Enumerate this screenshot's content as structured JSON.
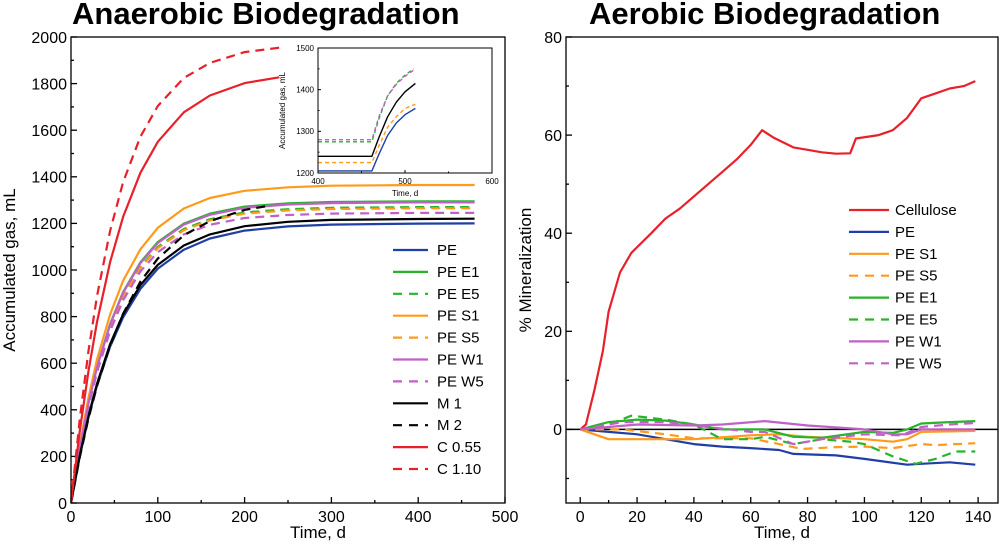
{
  "chart_data": [
    {
      "type": "line",
      "title": "Anaerobic Biodegradation",
      "xlabel": "Time, d",
      "ylabel": "Accumulated gas, mL",
      "xlim": [
        0,
        500
      ],
      "ylim": [
        0,
        2000
      ],
      "xticks": [
        0,
        100,
        200,
        300,
        400,
        500
      ],
      "yticks": [
        0,
        200,
        400,
        600,
        800,
        1000,
        1200,
        1400,
        1600,
        1800,
        2000
      ],
      "grid": false,
      "legend": "right-center",
      "series": [
        {
          "name": "PE",
          "color": "#1f3fa6",
          "dash": false,
          "x": [
            0,
            10,
            20,
            30,
            45,
            60,
            80,
            100,
            130,
            160,
            200,
            250,
            300,
            400,
            465
          ],
          "y": [
            0,
            199,
            366,
            504,
            671,
            797,
            919,
            1006,
            1087,
            1135,
            1169,
            1187,
            1195,
            1199,
            1200
          ]
        },
        {
          "name": "PE E1",
          "color": "#27b42a",
          "dash": false,
          "x": [
            0,
            10,
            20,
            30,
            45,
            60,
            80,
            100,
            130,
            160,
            200,
            250,
            300,
            400,
            465
          ],
          "y": [
            0,
            234,
            427,
            584,
            768,
            905,
            1033,
            1120,
            1199,
            1242,
            1272,
            1286,
            1292,
            1295,
            1295
          ]
        },
        {
          "name": "PE E5",
          "color": "#27b42a",
          "dash": true,
          "x": [
            0,
            10,
            20,
            30,
            45,
            60,
            80,
            100,
            130,
            160,
            200,
            250,
            300,
            400,
            465
          ],
          "y": [
            0,
            230,
            419,
            573,
            753,
            888,
            1013,
            1099,
            1176,
            1218,
            1247,
            1261,
            1267,
            1270,
            1270
          ]
        },
        {
          "name": "PE S1",
          "color": "#ff9a1a",
          "dash": false,
          "x": [
            0,
            10,
            20,
            30,
            45,
            60,
            80,
            100,
            130,
            160,
            200,
            250,
            300,
            400,
            465
          ],
          "y": [
            0,
            247,
            450,
            616,
            809,
            954,
            1089,
            1181,
            1264,
            1309,
            1340,
            1355,
            1362,
            1365,
            1365
          ]
        },
        {
          "name": "PE S5",
          "color": "#ff9a1a",
          "dash": true,
          "x": [
            0,
            10,
            20,
            30,
            45,
            60,
            80,
            100,
            130,
            160,
            200,
            250,
            300,
            400,
            465
          ],
          "y": [
            0,
            229,
            417,
            570,
            750,
            884,
            1009,
            1094,
            1171,
            1213,
            1242,
            1256,
            1262,
            1265,
            1265
          ]
        },
        {
          "name": "PE W1",
          "color": "#c061c8",
          "dash": false,
          "x": [
            0,
            10,
            20,
            30,
            45,
            60,
            80,
            100,
            130,
            160,
            200,
            250,
            300,
            400,
            465
          ],
          "y": [
            0,
            233,
            426,
            582,
            765,
            902,
            1029,
            1116,
            1195,
            1237,
            1267,
            1281,
            1287,
            1290,
            1290
          ]
        },
        {
          "name": "PE W5",
          "color": "#c061c8",
          "dash": true,
          "x": [
            0,
            10,
            20,
            30,
            45,
            60,
            80,
            100,
            130,
            160,
            200,
            250,
            300,
            400,
            465
          ],
          "y": [
            0,
            225,
            411,
            561,
            738,
            870,
            994,
            1077,
            1153,
            1194,
            1223,
            1236,
            1242,
            1245,
            1245
          ]
        },
        {
          "name": "M 1",
          "color": "#000000",
          "dash": false,
          "x": [
            0,
            10,
            20,
            30,
            45,
            60,
            80,
            100,
            130,
            160,
            200,
            250,
            300,
            400,
            465
          ],
          "y": [
            0,
            203,
            372,
            512,
            682,
            810,
            935,
            1022,
            1105,
            1153,
            1188,
            1207,
            1215,
            1219,
            1220
          ]
        },
        {
          "name": "M 2",
          "color": "#000000",
          "dash": true,
          "x": [
            0,
            10,
            20,
            30,
            45,
            60,
            80,
            100,
            130,
            160,
            200,
            230
          ],
          "y": [
            0,
            195,
            362,
            502,
            676,
            812,
            950,
            1049,
            1149,
            1210,
            1258,
            1277
          ]
        },
        {
          "name": "C 0.55",
          "color": "#e8202a",
          "dash": false,
          "x": [
            0,
            10,
            20,
            30,
            45,
            60,
            80,
            100,
            130,
            160,
            200,
            240
          ],
          "y": [
            0,
            307,
            564,
            777,
            1034,
            1228,
            1417,
            1550,
            1677,
            1749,
            1802,
            1827
          ]
        },
        {
          "name": "C 1.10",
          "color": "#e8202a",
          "dash": true,
          "x": [
            0,
            10,
            20,
            30,
            45,
            60,
            80,
            100,
            130,
            160,
            200,
            240
          ],
          "y": [
            0,
            357,
            650,
            888,
            1168,
            1377,
            1572,
            1704,
            1824,
            1889,
            1935,
            1954
          ]
        }
      ],
      "inset": {
        "xlabel": "Time, d",
        "ylabel": "Accumulated gas, mL",
        "xlim": [
          400,
          600
        ],
        "ylim": [
          1200,
          1500
        ],
        "xticks": [
          400,
          500,
          600
        ],
        "yticks": [
          1200,
          1300,
          1400,
          1500
        ],
        "series": [
          {
            "name": "PE",
            "color": "#1f3fa6",
            "dash": false,
            "x": [
              400,
              462,
              470,
              480,
              490,
              500,
              512
            ],
            "y": [
              1205,
              1205,
              1245,
              1290,
              1320,
              1340,
              1355
            ]
          },
          {
            "name": "PE S5",
            "color": "#ff9a1a",
            "dash": true,
            "x": [
              400,
              462,
              470,
              480,
              490,
              500,
              512
            ],
            "y": [
              1225,
              1225,
              1265,
              1310,
              1335,
              1355,
              1365
            ]
          },
          {
            "name": "M 1",
            "color": "#000000",
            "dash": false,
            "x": [
              400,
              462,
              470,
              480,
              490,
              500,
              512
            ],
            "y": [
              1240,
              1240,
              1285,
              1335,
              1370,
              1395,
              1415
            ]
          },
          {
            "name": "PE E5",
            "color": "#27b42a",
            "dash": true,
            "x": [
              400,
              462,
              470,
              480,
              490,
              500,
              510
            ],
            "y": [
              1275,
              1275,
              1330,
              1385,
              1415,
              1435,
              1450
            ]
          },
          {
            "name": "PE W5",
            "color": "#c061c8",
            "dash": true,
            "x": [
              400,
              462,
              470,
              480,
              490,
              500,
              510
            ],
            "y": [
              1280,
              1280,
              1335,
              1385,
              1413,
              1432,
              1447
            ]
          }
        ]
      }
    },
    {
      "type": "line",
      "title": "Aerobic Biodegradation",
      "xlabel": "Time, d",
      "ylabel": "% Mineralization",
      "xlim": [
        -5,
        147
      ],
      "ylim": [
        -15,
        80
      ],
      "xticks": [
        0,
        20,
        40,
        60,
        80,
        100,
        120,
        140
      ],
      "yticks": [
        0,
        20,
        40,
        60,
        80
      ],
      "grid": false,
      "zero_line": true,
      "legend": "right-center",
      "series": [
        {
          "name": "Cellulose",
          "color": "#e8202a",
          "dash": false,
          "x": [
            0,
            2,
            5,
            8,
            10,
            14,
            18,
            25,
            30,
            35,
            40,
            45,
            50,
            55,
            60,
            64,
            68,
            75,
            80,
            85,
            90,
            95,
            97,
            105,
            110,
            115,
            120,
            125,
            130,
            135,
            139
          ],
          "y": [
            0,
            1,
            8,
            16,
            24,
            32,
            36,
            40,
            43,
            45,
            47.5,
            50,
            52.5,
            55,
            58,
            61,
            59.5,
            57.5,
            57,
            56.5,
            56.2,
            56.3,
            59.3,
            60,
            61,
            63.5,
            67.5,
            68.5,
            69.5,
            70,
            71
          ]
        },
        {
          "name": "PE",
          "color": "#1f3fa6",
          "dash": false,
          "x": [
            0,
            10,
            20,
            30,
            40,
            50,
            60,
            70,
            75,
            90,
            100,
            115,
            120,
            130,
            139
          ],
          "y": [
            0,
            -0.5,
            -1,
            -2,
            -3,
            -3.5,
            -3.8,
            -4.2,
            -5,
            -5.3,
            -6,
            -7.2,
            -7,
            -6.7,
            -7.2
          ]
        },
        {
          "name": "PE S1",
          "color": "#ff9a1a",
          "dash": false,
          "x": [
            0,
            5,
            10,
            20,
            40,
            60,
            70,
            80,
            100,
            110,
            115,
            120,
            139
          ],
          "y": [
            0,
            -1,
            -2,
            -2,
            -2,
            -1.2,
            -1,
            -1.5,
            -2,
            -2.5,
            -2,
            -0.5,
            -0.3
          ]
        },
        {
          "name": "PE S5",
          "color": "#ff9a1a",
          "dash": true,
          "x": [
            0,
            15,
            30,
            40,
            60,
            70,
            78,
            90,
            100,
            110,
            120,
            125,
            139
          ],
          "y": [
            0,
            0,
            -1,
            -1.8,
            -1.8,
            -3,
            -4,
            -3.6,
            -3.5,
            -3.8,
            -3,
            -3.2,
            -2.8
          ]
        },
        {
          "name": "PE E1",
          "color": "#27b42a",
          "dash": false,
          "x": [
            0,
            10,
            20,
            30,
            40,
            50,
            65,
            75,
            85,
            100,
            110,
            115,
            120,
            130,
            139
          ],
          "y": [
            0,
            1.5,
            2,
            1.8,
            1,
            0,
            0,
            -1.5,
            -1.7,
            -0.5,
            -0.7,
            0,
            1.2,
            1.5,
            1.7
          ]
        },
        {
          "name": "PE E5",
          "color": "#27b42a",
          "dash": true,
          "x": [
            0,
            10,
            18,
            30,
            40,
            50,
            60,
            65,
            75,
            85,
            95,
            100,
            110,
            118,
            125,
            132,
            139
          ],
          "y": [
            0,
            1,
            2.8,
            2,
            1,
            -2,
            -2,
            -1.5,
            -3,
            -2,
            -2.5,
            -3,
            -5.5,
            -7,
            -6,
            -4.5,
            -4.5
          ]
        },
        {
          "name": "PE W1",
          "color": "#c061c8",
          "dash": false,
          "x": [
            0,
            10,
            20,
            40,
            50,
            65,
            80,
            95,
            100,
            110,
            115,
            120,
            139
          ],
          "y": [
            0,
            0.5,
            1,
            0.8,
            1,
            1.7,
            0.8,
            0.2,
            0,
            -1,
            -1,
            0,
            0
          ]
        },
        {
          "name": "PE W5",
          "color": "#c061c8",
          "dash": true,
          "x": [
            0,
            15,
            30,
            45,
            60,
            65,
            75,
            85,
            100,
            113,
            120,
            130,
            139
          ],
          "y": [
            0,
            1.5,
            1.5,
            0.5,
            -0.5,
            -0.5,
            -3,
            -2,
            -1,
            -1.2,
            0.5,
            1,
            1.3
          ]
        }
      ]
    }
  ]
}
